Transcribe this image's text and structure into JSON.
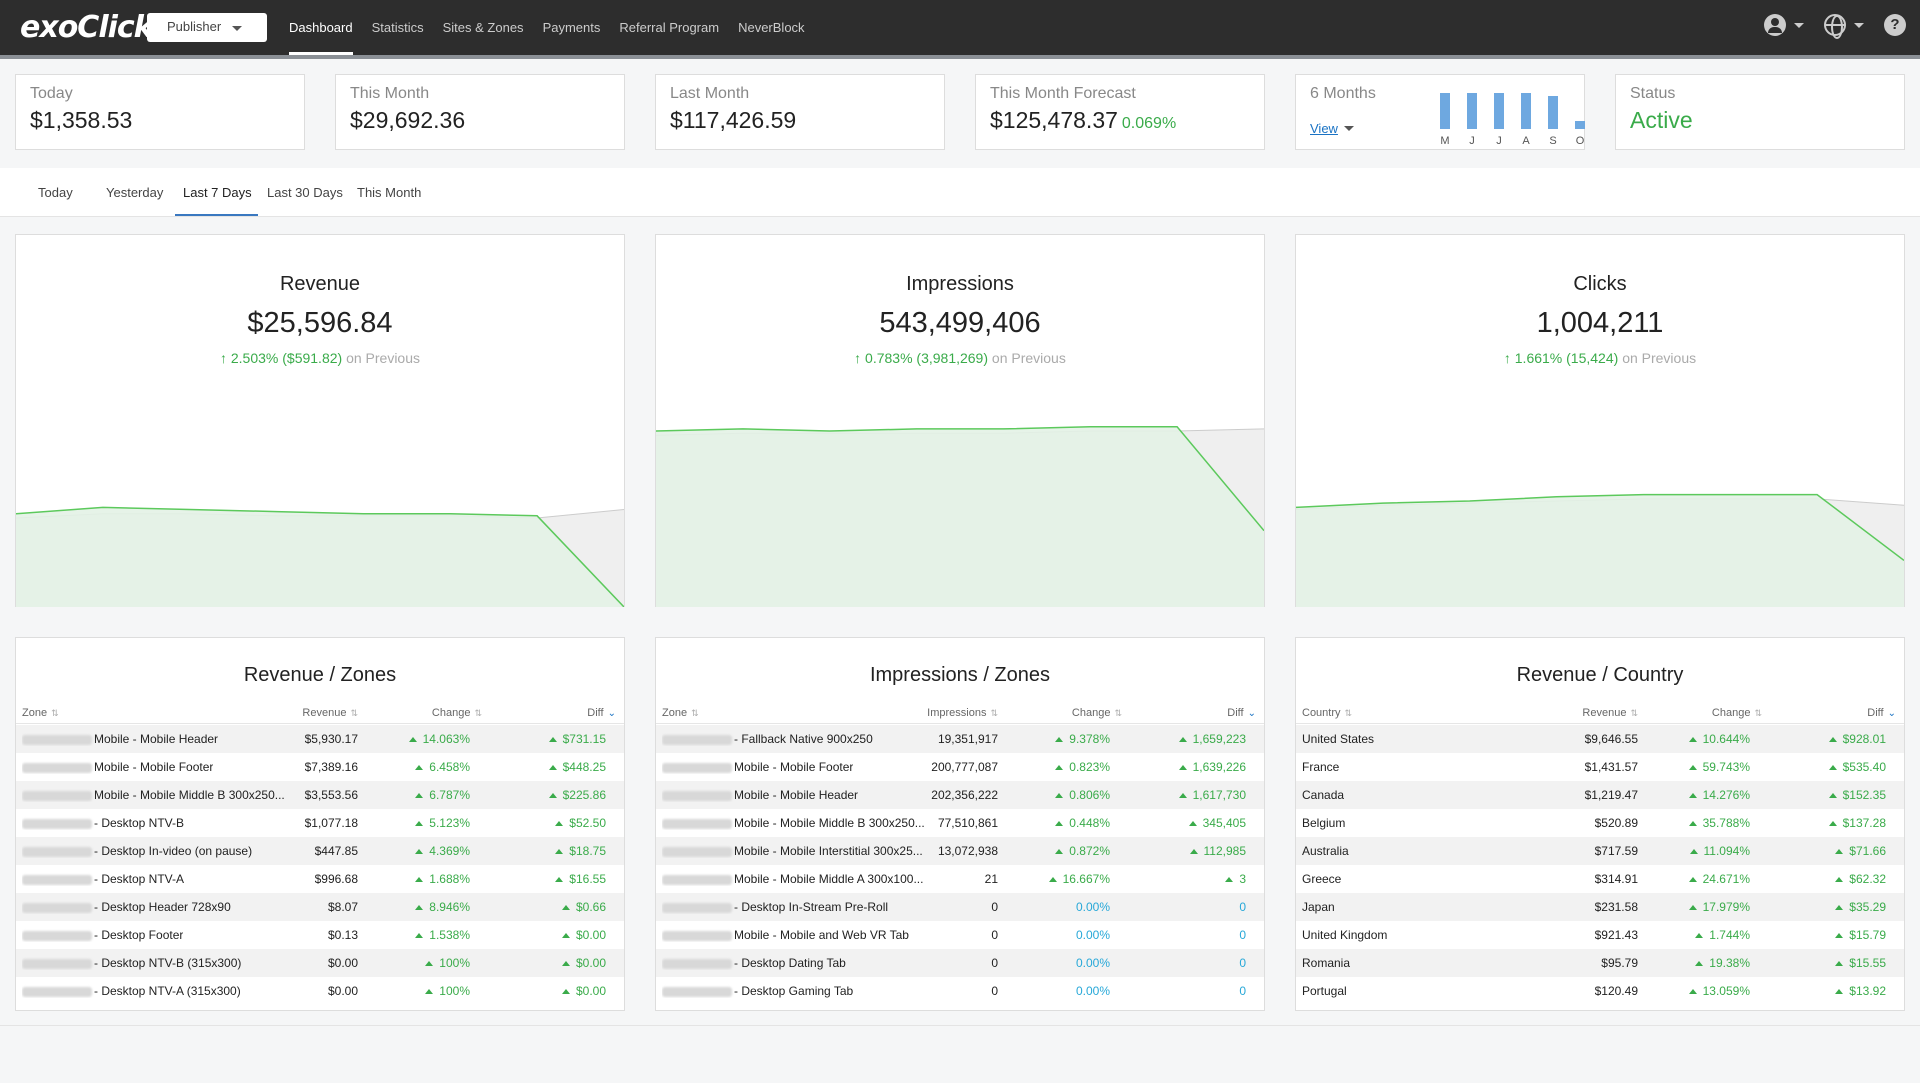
{
  "app": {
    "logo": "exoClick",
    "role": "Publisher",
    "nav": [
      "Dashboard",
      "Statistics",
      "Sites & Zones",
      "Payments",
      "Referral Program",
      "NeverBlock"
    ],
    "active_nav": "Dashboard",
    "icons": [
      "user-icon",
      "globe-icon",
      "help-icon"
    ]
  },
  "kpis": {
    "today": {
      "label": "Today",
      "value": "$1,358.53"
    },
    "this_month": {
      "label": "This Month",
      "value": "$29,692.36"
    },
    "last_month": {
      "label": "Last Month",
      "value": "$117,426.59"
    },
    "forecast": {
      "label": "This Month Forecast",
      "value": "$125,478.37",
      "pct": "0.069%"
    },
    "six_months": {
      "label": "6 Months",
      "link": "View",
      "months": [
        "M",
        "J",
        "J",
        "A",
        "S",
        "O"
      ],
      "relative_values": [
        1.0,
        1.0,
        1.0,
        1.0,
        0.93,
        0.22
      ]
    },
    "status": {
      "label": "Status",
      "value": "Active"
    }
  },
  "date_tabs": [
    "Today",
    "Yesterday",
    "Last 7 Days",
    "Last 30 Days",
    "This Month"
  ],
  "active_date_tab": "Last 7 Days",
  "colors": {
    "positive": "#3aab4a",
    "zero": "#27a8d8",
    "area_current": "#e3f2e6",
    "area_previous": "#efefef",
    "accent": "#3a78c0"
  },
  "metrics": [
    {
      "title": "Revenue",
      "value": "$25,596.84",
      "change": "2.503% ($591.82)",
      "suffix": "on Previous",
      "current": [
        0.44,
        0.47,
        0.46,
        0.45,
        0.44,
        0.44,
        0.43,
        0.0
      ],
      "previous": [
        0.42,
        0.44,
        0.44,
        0.43,
        0.43,
        0.43,
        0.42,
        0.46
      ]
    },
    {
      "title": "Impressions",
      "value": "543,499,406",
      "change": "0.783% (3,981,269)",
      "suffix": "on Previous",
      "current": [
        0.83,
        0.84,
        0.83,
        0.84,
        0.84,
        0.85,
        0.85,
        0.36
      ],
      "previous": [
        0.81,
        0.82,
        0.82,
        0.82,
        0.82,
        0.83,
        0.83,
        0.84
      ]
    },
    {
      "title": "Clicks",
      "value": "1,004,211",
      "change": "1.661% (15,424)",
      "suffix": "on Previous",
      "current": [
        0.47,
        0.49,
        0.5,
        0.52,
        0.53,
        0.53,
        0.53,
        0.22
      ],
      "previous": [
        0.46,
        0.48,
        0.49,
        0.5,
        0.51,
        0.51,
        0.51,
        0.48
      ]
    }
  ],
  "tables": [
    {
      "title": "Revenue / Zones",
      "headers": [
        "Zone",
        "Revenue",
        "Change",
        "Diff"
      ],
      "rows": [
        {
          "name": "Mobile - Mobile Header",
          "value": "$5,930.17",
          "change": "14.063%",
          "diff": "$731.15",
          "pos": true
        },
        {
          "name": "Mobile - Mobile Footer",
          "value": "$7,389.16",
          "change": "6.458%",
          "diff": "$448.25",
          "pos": true
        },
        {
          "name": "Mobile - Mobile Middle B 300x250...",
          "value": "$3,553.56",
          "change": "6.787%",
          "diff": "$225.86",
          "pos": true
        },
        {
          "name": "- Desktop NTV-B",
          "value": "$1,077.18",
          "change": "5.123%",
          "diff": "$52.50",
          "pos": true
        },
        {
          "name": "- Desktop In-video (on pause)",
          "value": "$447.85",
          "change": "4.369%",
          "diff": "$18.75",
          "pos": true
        },
        {
          "name": "- Desktop NTV-A",
          "value": "$996.68",
          "change": "1.688%",
          "diff": "$16.55",
          "pos": true
        },
        {
          "name": "- Desktop Header 728x90",
          "value": "$8.07",
          "change": "8.946%",
          "diff": "$0.66",
          "pos": true
        },
        {
          "name": "- Desktop Footer",
          "value": "$0.13",
          "change": "1.538%",
          "diff": "$0.00",
          "pos": true
        },
        {
          "name": "- Desktop NTV-B (315x300)",
          "value": "$0.00",
          "change": "100%",
          "diff": "$0.00",
          "pos": true
        },
        {
          "name": "- Desktop NTV-A (315x300)",
          "value": "$0.00",
          "change": "100%",
          "diff": "$0.00",
          "pos": true
        }
      ]
    },
    {
      "title": "Impressions / Zones",
      "headers": [
        "Zone",
        "Impressions",
        "Change",
        "Diff"
      ],
      "rows": [
        {
          "name": "- Fallback Native 900x250",
          "value": "19,351,917",
          "change": "9.378%",
          "diff": "1,659,223",
          "pos": true
        },
        {
          "name": "Mobile - Mobile Footer",
          "value": "200,777,087",
          "change": "0.823%",
          "diff": "1,639,226",
          "pos": true
        },
        {
          "name": "Mobile - Mobile Header",
          "value": "202,356,222",
          "change": "0.806%",
          "diff": "1,617,730",
          "pos": true
        },
        {
          "name": "Mobile - Mobile Middle B 300x250...",
          "value": "77,510,861",
          "change": "0.448%",
          "diff": "345,405",
          "pos": true
        },
        {
          "name": "Mobile - Mobile Interstitial 300x25...",
          "value": "13,072,938",
          "change": "0.872%",
          "diff": "112,985",
          "pos": true
        },
        {
          "name": "Mobile - Mobile Middle A 300x100...",
          "value": "21",
          "change": "16.667%",
          "diff": "3",
          "pos": true
        },
        {
          "name": "- Desktop In-Stream Pre-Roll",
          "value": "0",
          "change": "0.00%",
          "diff": "0",
          "pos": false
        },
        {
          "name": "Mobile - Mobile and Web VR Tab",
          "value": "0",
          "change": "0.00%",
          "diff": "0",
          "pos": false
        },
        {
          "name": "- Desktop Dating Tab",
          "value": "0",
          "change": "0.00%",
          "diff": "0",
          "pos": false
        },
        {
          "name": "- Desktop Gaming Tab",
          "value": "0",
          "change": "0.00%",
          "diff": "0",
          "pos": false
        }
      ]
    },
    {
      "title": "Revenue / Country",
      "headers": [
        "Country",
        "Revenue",
        "Change",
        "Diff"
      ],
      "rows": [
        {
          "name": "United States",
          "value": "$9,646.55",
          "change": "10.644%",
          "diff": "$928.01",
          "pos": true
        },
        {
          "name": "France",
          "value": "$1,431.57",
          "change": "59.743%",
          "diff": "$535.40",
          "pos": true
        },
        {
          "name": "Canada",
          "value": "$1,219.47",
          "change": "14.276%",
          "diff": "$152.35",
          "pos": true
        },
        {
          "name": "Belgium",
          "value": "$520.89",
          "change": "35.788%",
          "diff": "$137.28",
          "pos": true
        },
        {
          "name": "Australia",
          "value": "$717.59",
          "change": "11.094%",
          "diff": "$71.66",
          "pos": true
        },
        {
          "name": "Greece",
          "value": "$314.91",
          "change": "24.671%",
          "diff": "$62.32",
          "pos": true
        },
        {
          "name": "Japan",
          "value": "$231.58",
          "change": "17.979%",
          "diff": "$35.29",
          "pos": true
        },
        {
          "name": "United Kingdom",
          "value": "$921.43",
          "change": "1.744%",
          "diff": "$15.79",
          "pos": true
        },
        {
          "name": "Romania",
          "value": "$95.79",
          "change": "19.38%",
          "diff": "$15.55",
          "pos": true
        },
        {
          "name": "Portugal",
          "value": "$120.49",
          "change": "13.059%",
          "diff": "$13.92",
          "pos": true
        }
      ]
    }
  ]
}
